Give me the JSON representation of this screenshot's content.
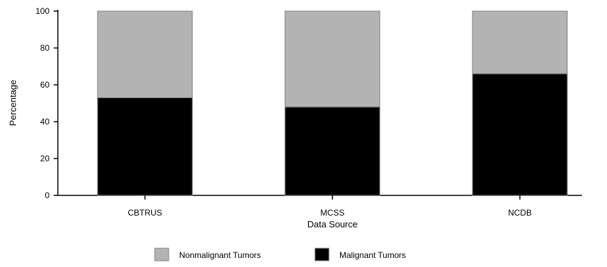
{
  "chart_data": {
    "type": "bar",
    "stacked": true,
    "categories": [
      "CBTRUS",
      "MCSS",
      "NCDB"
    ],
    "series": [
      {
        "name": "Malignant Tumors",
        "values": [
          53,
          48,
          66
        ],
        "color": "#000000"
      },
      {
        "name": "Nonmalignant Tumors",
        "values": [
          47,
          52,
          34
        ],
        "color": "#b3b3b3"
      }
    ],
    "xlabel": "Data Source",
    "ylabel": "Percentage",
    "ylim": [
      0,
      100
    ],
    "yticks": [
      "0",
      "20",
      "40",
      "60",
      "80",
      "100"
    ],
    "legend_position": "bottom",
    "legend": [
      {
        "label": "Nonmalignant Tumors",
        "color": "#b3b3b3"
      },
      {
        "label": "Malignant Tumors",
        "color": "#000000"
      }
    ],
    "grid": false
  }
}
